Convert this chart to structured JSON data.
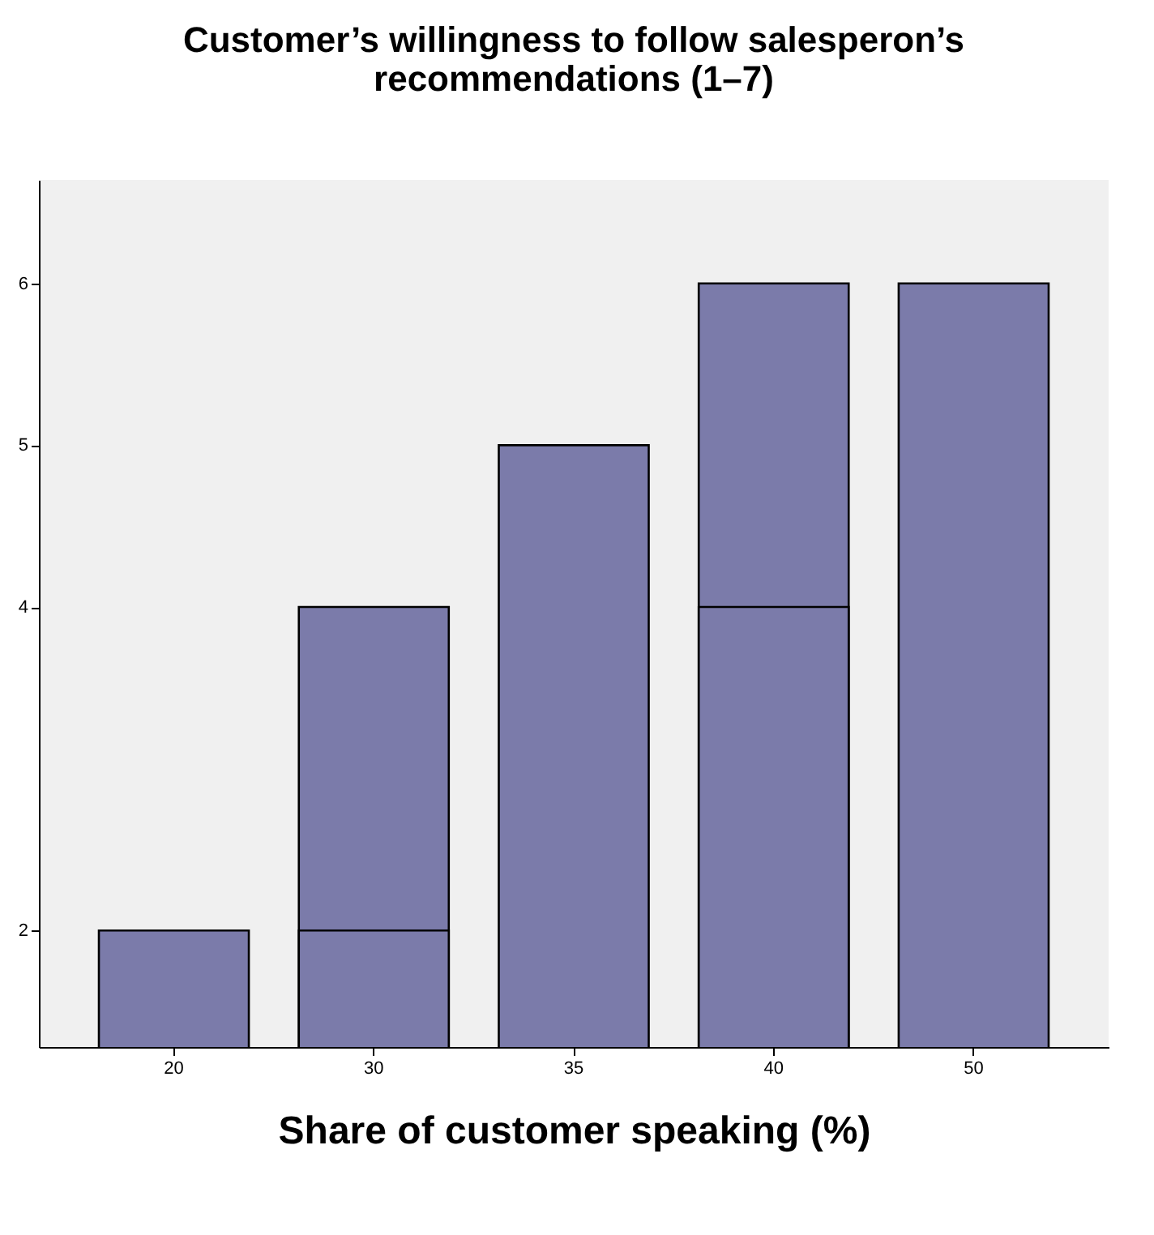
{
  "chart_data": {
    "type": "bar",
    "title": "Customer’s willingness to follow salesperon’s recommendations (1–7)",
    "xlabel": "Share of customer speaking (%)",
    "categories": [
      "20",
      "30",
      "35",
      "40",
      "50"
    ],
    "series": [
      {
        "color": "#7b7baa",
        "values": [
          2,
          4,
          5,
          6,
          6
        ]
      },
      {
        "color": "#7b7baa",
        "values": [
          null,
          2,
          null,
          4,
          null
        ]
      }
    ],
    "ylim": [
      1.28,
      6.64
    ],
    "yticks": [
      2,
      4,
      5,
      6
    ],
    "grid": false
  }
}
